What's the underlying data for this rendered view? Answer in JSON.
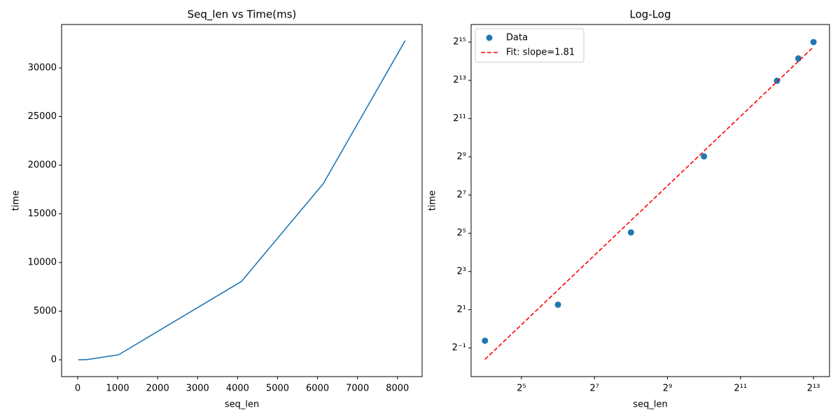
{
  "chart_data": [
    {
      "type": "line",
      "title": "Seq_len vs Time(ms)",
      "x_label": "seq_len",
      "y_label": "time",
      "x": [
        16,
        64,
        256,
        1024,
        4096,
        6144,
        8192
      ],
      "values": [
        0.65,
        2.4,
        33,
        520,
        8050,
        18100,
        32800
      ],
      "color": "#1f77b4",
      "xlim": [
        -403,
        8617
      ],
      "xticks": [
        0,
        1000,
        2000,
        3000,
        4000,
        5000,
        6000,
        7000,
        8000
      ],
      "ylim": [
        -1727,
        34460
      ],
      "yticks": [
        0,
        5000,
        10000,
        15000,
        20000,
        25000,
        30000
      ]
    },
    {
      "type": "scatter",
      "title": "Log-Log",
      "x_label": "seq_len",
      "y_label": "time",
      "xscale": "log",
      "yscale": "log",
      "legend": "upper left",
      "series": [
        {
          "name": "Data",
          "type": "scatter",
          "color": "#1f77b4",
          "x": [
            16,
            64,
            256,
            1024,
            4096,
            6144,
            8192
          ],
          "values": [
            0.65,
            2.4,
            33,
            520,
            8050,
            18100,
            32800
          ]
        },
        {
          "name": "Fit: slope=1.81",
          "type": "line",
          "color": "#ff0000",
          "linestyle": "dashed",
          "x": [
            16,
            8192
          ],
          "values": [
            0.33,
            27500
          ]
        }
      ],
      "xlim": [
        12.3,
        11100
      ],
      "xticks": [
        {
          "value": 32,
          "label": "2⁵"
        },
        {
          "value": 128,
          "label": "2⁷"
        },
        {
          "value": 512,
          "label": "2⁹"
        },
        {
          "value": 2048,
          "label": "2¹¹"
        },
        {
          "value": 8192,
          "label": "2¹³"
        }
      ],
      "ylim": [
        0.177,
        62000
      ],
      "yticks": [
        {
          "value": 0.5,
          "label": "2⁻¹"
        },
        {
          "value": 2,
          "label": "2¹"
        },
        {
          "value": 8,
          "label": "2³"
        },
        {
          "value": 32,
          "label": "2⁵"
        },
        {
          "value": 128,
          "label": "2⁷"
        },
        {
          "value": 512,
          "label": "2⁹"
        },
        {
          "value": 2048,
          "label": "2¹¹"
        },
        {
          "value": 8192,
          "label": "2¹³"
        },
        {
          "value": 32768,
          "label": "2¹⁵"
        }
      ]
    }
  ]
}
